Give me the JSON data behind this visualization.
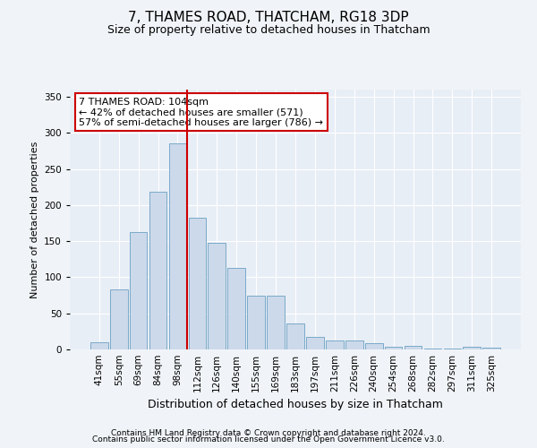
{
  "title": "7, THAMES ROAD, THATCHAM, RG18 3DP",
  "subtitle": "Size of property relative to detached houses in Thatcham",
  "xlabel": "Distribution of detached houses by size in Thatcham",
  "ylabel": "Number of detached properties",
  "categories": [
    "41sqm",
    "55sqm",
    "69sqm",
    "84sqm",
    "98sqm",
    "112sqm",
    "126sqm",
    "140sqm",
    "155sqm",
    "169sqm",
    "183sqm",
    "197sqm",
    "211sqm",
    "226sqm",
    "240sqm",
    "254sqm",
    "268sqm",
    "282sqm",
    "297sqm",
    "311sqm",
    "325sqm"
  ],
  "values": [
    10,
    83,
    163,
    218,
    285,
    183,
    148,
    113,
    75,
    75,
    36,
    17,
    13,
    13,
    9,
    4,
    5,
    1,
    1,
    4,
    3
  ],
  "bar_color": "#ccd9ea",
  "bar_edge_color": "#7aaac8",
  "vline_x": 4.5,
  "vline_color": "#cc0000",
  "annotation_lines": [
    "7 THAMES ROAD: 104sqm",
    "← 42% of detached houses are smaller (571)",
    "57% of semi-detached houses are larger (786) →"
  ],
  "annotation_box_color": "#ffffff",
  "annotation_box_edge_color": "#cc0000",
  "ylim": [
    0,
    360
  ],
  "yticks": [
    0,
    50,
    100,
    150,
    200,
    250,
    300,
    350
  ],
  "footer1": "Contains HM Land Registry data © Crown copyright and database right 2024.",
  "footer2": "Contains public sector information licensed under the Open Government Licence v3.0.",
  "bg_color": "#f0f4f8",
  "plot_bg_color": "#e8eef6",
  "title_fontsize": 11,
  "subtitle_fontsize": 9,
  "xlabel_fontsize": 9,
  "ylabel_fontsize": 8,
  "tick_fontsize": 7.5,
  "annotation_fontsize": 8,
  "footer_fontsize": 6.5
}
